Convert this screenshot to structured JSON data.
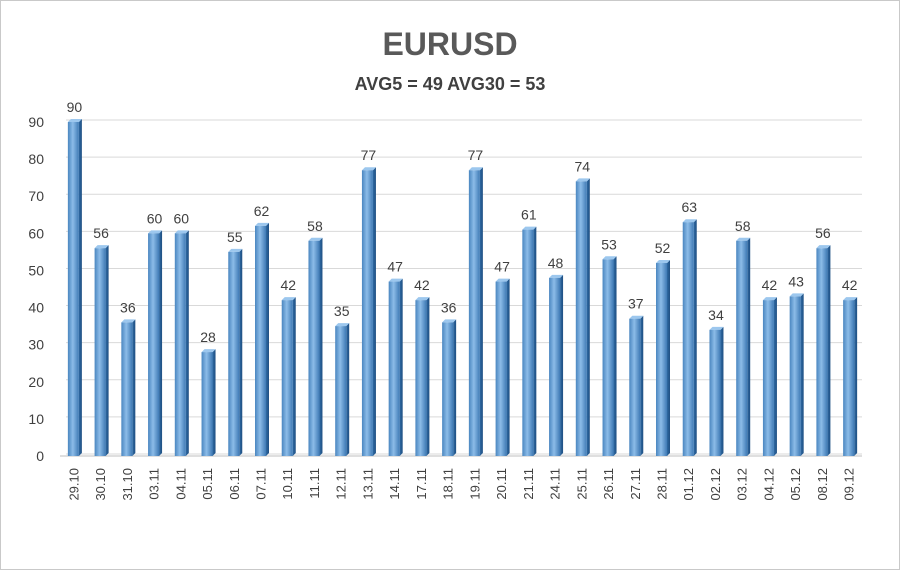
{
  "chart_data": {
    "type": "bar",
    "title": "EURUSD",
    "subtitle": "AVG5 = 49 AVG30 = 53",
    "xlabel": "",
    "ylabel": "",
    "ylim": [
      0,
      90
    ],
    "yticks": [
      0,
      10,
      20,
      30,
      40,
      50,
      60,
      70,
      80,
      90
    ],
    "grid": true,
    "legend": "none",
    "bar_color": "#5b9bd5",
    "categories": [
      "29.10",
      "30.10",
      "31.10",
      "03.11",
      "04.11",
      "05.11",
      "06.11",
      "07.11",
      "10.11",
      "11.11",
      "12.11",
      "13.11",
      "14.11",
      "17.11",
      "18.11",
      "19.11",
      "20.11",
      "21.11",
      "24.11",
      "25.11",
      "26.11",
      "27.11",
      "28.11",
      "01.12",
      "02.12",
      "03.12",
      "04.12",
      "05.12",
      "08.12",
      "09.12"
    ],
    "values": [
      90,
      56,
      36,
      60,
      60,
      28,
      55,
      62,
      42,
      58,
      35,
      77,
      47,
      42,
      36,
      77,
      47,
      61,
      48,
      74,
      53,
      37,
      52,
      63,
      34,
      58,
      42,
      43,
      56,
      42
    ]
  }
}
